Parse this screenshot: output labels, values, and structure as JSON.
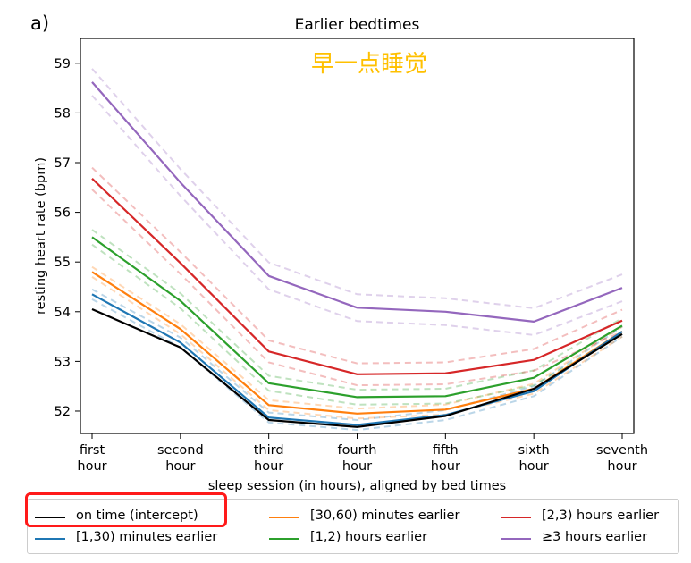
{
  "panel_label": "a)",
  "annotation": "早一点睡觉",
  "colors": {
    "on_time": "#000000",
    "m1_30": "#1f77b4",
    "m30_60": "#ff7f0e",
    "h1_2": "#2ca02c",
    "h2_3": "#d62728",
    "h3plus": "#9467bd",
    "annotation": "#ffc000",
    "highlight": "#ff1a1a"
  },
  "chart_data": {
    "type": "line",
    "title": "Earlier bedtimes",
    "xlabel": "sleep session (in hours), aligned by bed times",
    "ylabel": "resting heart rate (bpm)",
    "categories": [
      [
        "first",
        "hour"
      ],
      [
        "second",
        "hour"
      ],
      [
        "third",
        "hour"
      ],
      [
        "fourth",
        "hour"
      ],
      [
        "fifth",
        "hour"
      ],
      [
        "sixth",
        "hour"
      ],
      [
        "seventh",
        "hour"
      ]
    ],
    "ylim": [
      51.55,
      59.5
    ],
    "yticks": [
      52,
      53,
      54,
      55,
      56,
      57,
      58,
      59
    ],
    "legend_position": "bottom",
    "series": [
      {
        "name": "on time (intercept)",
        "color_key": "on_time",
        "values": [
          54.05,
          53.28,
          51.82,
          51.68,
          51.9,
          52.45,
          53.55
        ],
        "ci": null
      },
      {
        "name": "[1,30) minutes earlier",
        "color_key": "m1_30",
        "values": [
          54.35,
          53.38,
          51.87,
          51.72,
          51.92,
          52.4,
          53.6
        ],
        "ci": 0.1
      },
      {
        "name": "[30,60) minutes earlier",
        "color_key": "m30_60",
        "values": [
          54.8,
          53.65,
          52.12,
          51.95,
          52.03,
          52.45,
          53.6
        ],
        "ci": 0.1
      },
      {
        "name": "[1,2) hours earlier",
        "color_key": "h1_2",
        "values": [
          55.5,
          54.22,
          52.56,
          52.28,
          52.3,
          52.67,
          53.72
        ],
        "ci": 0.15
      },
      {
        "name": "[2,3) hours earlier",
        "color_key": "h2_3",
        "values": [
          56.68,
          54.98,
          53.2,
          52.74,
          52.76,
          53.03,
          53.82
        ],
        "ci": 0.22
      },
      {
        "name": "≥3 hours earlier",
        "color_key": "h3plus",
        "values": [
          58.62,
          56.6,
          54.72,
          54.08,
          54.0,
          53.8,
          54.48
        ],
        "ci": 0.27
      }
    ],
    "legend_order": [
      [
        "on time (intercept)",
        "[30,60) minutes earlier",
        "[2,3) hours earlier"
      ],
      [
        "[1,30) minutes earlier",
        "[1,2) hours earlier",
        "≥3 hours earlier"
      ]
    ]
  }
}
